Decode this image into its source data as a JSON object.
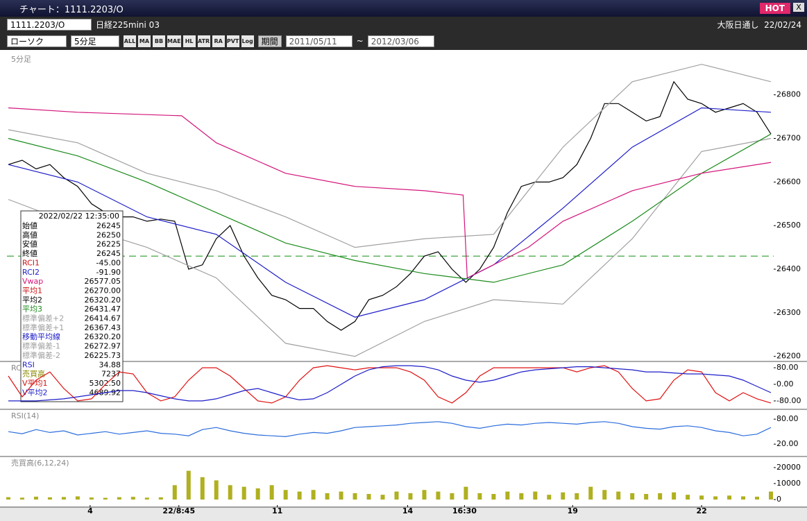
{
  "window": {
    "title": "チャート：1111.2203/O",
    "hot": "HOT",
    "close": "X"
  },
  "toolbar": {
    "symbol": "1111.2203/O",
    "name": "日経225mini 03",
    "session": "大阪日通し",
    "date": "22/02/24",
    "chart_kind": "ローソク",
    "interval": "5分足",
    "icons": [
      "ALL",
      "MA",
      "BB",
      "MAE",
      "HL",
      "ATR",
      "RA",
      "PVT",
      "Log"
    ],
    "period": "期間",
    "from": "2011/05/11",
    "tilde": "~",
    "to": "2012/03/06"
  },
  "chart_data": [
    {
      "type": "line",
      "label": "5分足",
      "ylim": [
        26190,
        26895
      ],
      "yticks": [
        26200,
        26300,
        26400,
        26500,
        26600,
        26700,
        26800
      ],
      "hline": 26430,
      "series": [
        {
          "color": "#000000",
          "values": [
            26640,
            26650,
            26630,
            26640,
            26610,
            26590,
            26550,
            26530,
            26520,
            26520,
            26510,
            26515,
            26510,
            26400,
            26410,
            26470,
            26500,
            26430,
            26380,
            26340,
            26330,
            26310,
            26310,
            26280,
            26260,
            26280,
            26330,
            26340,
            26360,
            26390,
            26430,
            26440,
            26400,
            26370,
            26400,
            26450,
            26530,
            26590,
            26600,
            26600,
            26610,
            26640,
            26700,
            26780,
            26780,
            26760,
            26740,
            26750,
            26830,
            26790,
            26780,
            26760,
            26770,
            26780,
            26760,
            26710
          ]
        },
        {
          "color": "#a0a0a0",
          "x": [
            0,
            5,
            10,
            15,
            20,
            25,
            30,
            35,
            40,
            45,
            50,
            55
          ],
          "values": [
            26720,
            26690,
            26620,
            26580,
            26520,
            26450,
            26470,
            26480,
            26680,
            26830,
            26870,
            26830
          ]
        },
        {
          "color": "#a0a0a0",
          "x": [
            0,
            5,
            10,
            15,
            20,
            25,
            30,
            35,
            40,
            45,
            50,
            55
          ],
          "values": [
            26560,
            26500,
            26450,
            26380,
            26230,
            26200,
            26280,
            26330,
            26320,
            26470,
            26670,
            26700
          ]
        },
        {
          "color": "#1c1cc8",
          "x": [
            0,
            5,
            10,
            15,
            20,
            25,
            30,
            35,
            40,
            45,
            50,
            55
          ],
          "values": [
            26640,
            26600,
            26520,
            26480,
            26370,
            26290,
            26330,
            26410,
            26540,
            26680,
            26770,
            26760
          ]
        },
        {
          "color": "#1a8a1a",
          "x": [
            0,
            5,
            10,
            15,
            20,
            25,
            30,
            35,
            40,
            45,
            50,
            55
          ],
          "values": [
            26700,
            26660,
            26600,
            26530,
            26460,
            26420,
            26390,
            26370,
            26410,
            26510,
            26620,
            26710
          ]
        },
        {
          "color": "#d4137a",
          "x": [
            0,
            5,
            12.5,
            15,
            20,
            25,
            30,
            32.8,
            33.1,
            37.5,
            40,
            45,
            50,
            55
          ],
          "values": [
            26770,
            26760,
            26752,
            26690,
            26620,
            26590,
            26580,
            26570,
            26380,
            26450,
            26510,
            26580,
            26620,
            26645
          ]
        }
      ],
      "info": {
        "datetime": "2022/02/22  12:35:00",
        "rows": [
          {
            "label": "始値",
            "value": "26245",
            "color": "#000000"
          },
          {
            "label": "高値",
            "value": "26250",
            "color": "#000000"
          },
          {
            "label": "安値",
            "value": "26225",
            "color": "#000000"
          },
          {
            "label": "終値",
            "value": "26245",
            "color": "#000000"
          },
          {
            "label": "RCI1",
            "value": "-45.00",
            "color": "#d01010"
          },
          {
            "label": "RCI2",
            "value": "-91.90",
            "color": "#1c1cc8"
          },
          {
            "label": "Vwap",
            "value": "26577.05",
            "color": "#d4137a"
          },
          {
            "label": "平均1",
            "value": "26270.00",
            "color": "#d01010"
          },
          {
            "label": "平均2",
            "value": "26320.20",
            "color": "#000000"
          },
          {
            "label": "平均3",
            "value": "26431.47",
            "color": "#1a8a1a"
          },
          {
            "label": "標準偏差+2",
            "value": "26414.67",
            "color": "#a0a0a0"
          },
          {
            "label": "標準偏差+1",
            "value": "26367.43",
            "color": "#a0a0a0"
          },
          {
            "label": "移動平均線",
            "value": "26320.20",
            "color": "#1c1cc8"
          },
          {
            "label": "標準偏差-1",
            "value": "26272.97",
            "color": "#a0a0a0"
          },
          {
            "label": "標準偏差-2",
            "value": "26225.73",
            "color": "#a0a0a0"
          },
          {
            "label": "RSI",
            "value": "34.88",
            "color": "#1c1cc8"
          },
          {
            "label": "売買高",
            "value": "7237",
            "color": "#8a8a00"
          },
          {
            "label": "V平均1",
            "value": "5302.50",
            "color": "#d01010"
          },
          {
            "label": "V平均2",
            "value": "4689.92",
            "color": "#1c1cc8"
          }
        ]
      }
    },
    {
      "type": "line",
      "label": "RC",
      "ylim": [
        -117,
        107
      ],
      "yticks": [
        {
          "value": 80,
          "label": "80.00"
        },
        {
          "value": 0,
          "label": "0.00"
        },
        {
          "value": -80,
          "label": "-80.00"
        }
      ],
      "series": [
        {
          "color": "#e01010",
          "values": [
            40,
            -60,
            20,
            60,
            -20,
            -80,
            -70,
            0,
            60,
            50,
            -40,
            -80,
            -60,
            20,
            80,
            80,
            40,
            -20,
            -80,
            -90,
            -60,
            20,
            80,
            90,
            80,
            70,
            80,
            80,
            80,
            60,
            20,
            -60,
            -90,
            -40,
            40,
            80,
            80,
            80,
            80,
            80,
            80,
            60,
            80,
            90,
            60,
            -20,
            -80,
            -70,
            20,
            70,
            60,
            -40,
            -80,
            -40,
            -70,
            -90
          ]
        },
        {
          "color": "#1c1cc8",
          "values": [
            -80,
            -80,
            -80,
            -75,
            -70,
            -60,
            -50,
            -40,
            -30,
            -30,
            -40,
            -55,
            -70,
            -80,
            -80,
            -70,
            -50,
            -30,
            -20,
            -40,
            -60,
            -75,
            -70,
            -40,
            0,
            40,
            70,
            85,
            90,
            90,
            85,
            70,
            40,
            20,
            10,
            20,
            40,
            60,
            70,
            75,
            80,
            85,
            85,
            80,
            75,
            70,
            60,
            60,
            55,
            50,
            50,
            45,
            40,
            20,
            -10,
            -40
          ]
        }
      ]
    },
    {
      "type": "line",
      "label": "RSI(14)",
      "ylim": [
        -8,
        102
      ],
      "yticks": [
        {
          "value": 80,
          "label": "80.00"
        },
        {
          "value": 20,
          "label": "20.00"
        }
      ],
      "series": [
        {
          "color": "#2a6cdc",
          "values": [
            50,
            45,
            55,
            48,
            52,
            42,
            46,
            50,
            44,
            48,
            52,
            46,
            44,
            40,
            55,
            60,
            52,
            46,
            42,
            40,
            38,
            44,
            48,
            46,
            52,
            60,
            62,
            64,
            66,
            70,
            72,
            74,
            70,
            62,
            58,
            64,
            68,
            66,
            70,
            72,
            70,
            68,
            72,
            74,
            70,
            62,
            58,
            56,
            62,
            64,
            60,
            52,
            48,
            40,
            44,
            60
          ]
        }
      ]
    },
    {
      "type": "bar",
      "label": "売買高(6,12,24)",
      "ylim": [
        -4300,
        26500
      ],
      "yticks": [
        20000,
        10000,
        0
      ],
      "xlim": [
        -0.1,
        55.2
      ],
      "xticks": [
        {
          "value": 5.9,
          "label": "4"
        },
        {
          "value": 12.3,
          "label": "22/8:45"
        },
        {
          "value": 19.4,
          "label": "11"
        },
        {
          "value": 28.8,
          "label": "14"
        },
        {
          "value": 32.9,
          "label": "16:30"
        },
        {
          "value": 40.7,
          "label": "19"
        },
        {
          "value": 50,
          "label": "22"
        }
      ],
      "series": [
        {
          "color": "#b0b020",
          "values": [
            1500,
            1200,
            1800,
            1400,
            1600,
            2000,
            1300,
            1100,
            1500,
            1700,
            1200,
            1400,
            9000,
            18000,
            14000,
            12000,
            9000,
            8000,
            7000,
            9000,
            6000,
            5000,
            6000,
            4000,
            5000,
            4000,
            3500,
            3000,
            5000,
            4000,
            6000,
            5000,
            4000,
            8000,
            4000,
            3500,
            5000,
            4000,
            5000,
            3000,
            4500,
            4000,
            8000,
            6000,
            5000,
            4000,
            3500,
            4000,
            4500,
            3000,
            2500,
            2000,
            2500,
            2000,
            1800,
            5000
          ]
        }
      ]
    }
  ]
}
